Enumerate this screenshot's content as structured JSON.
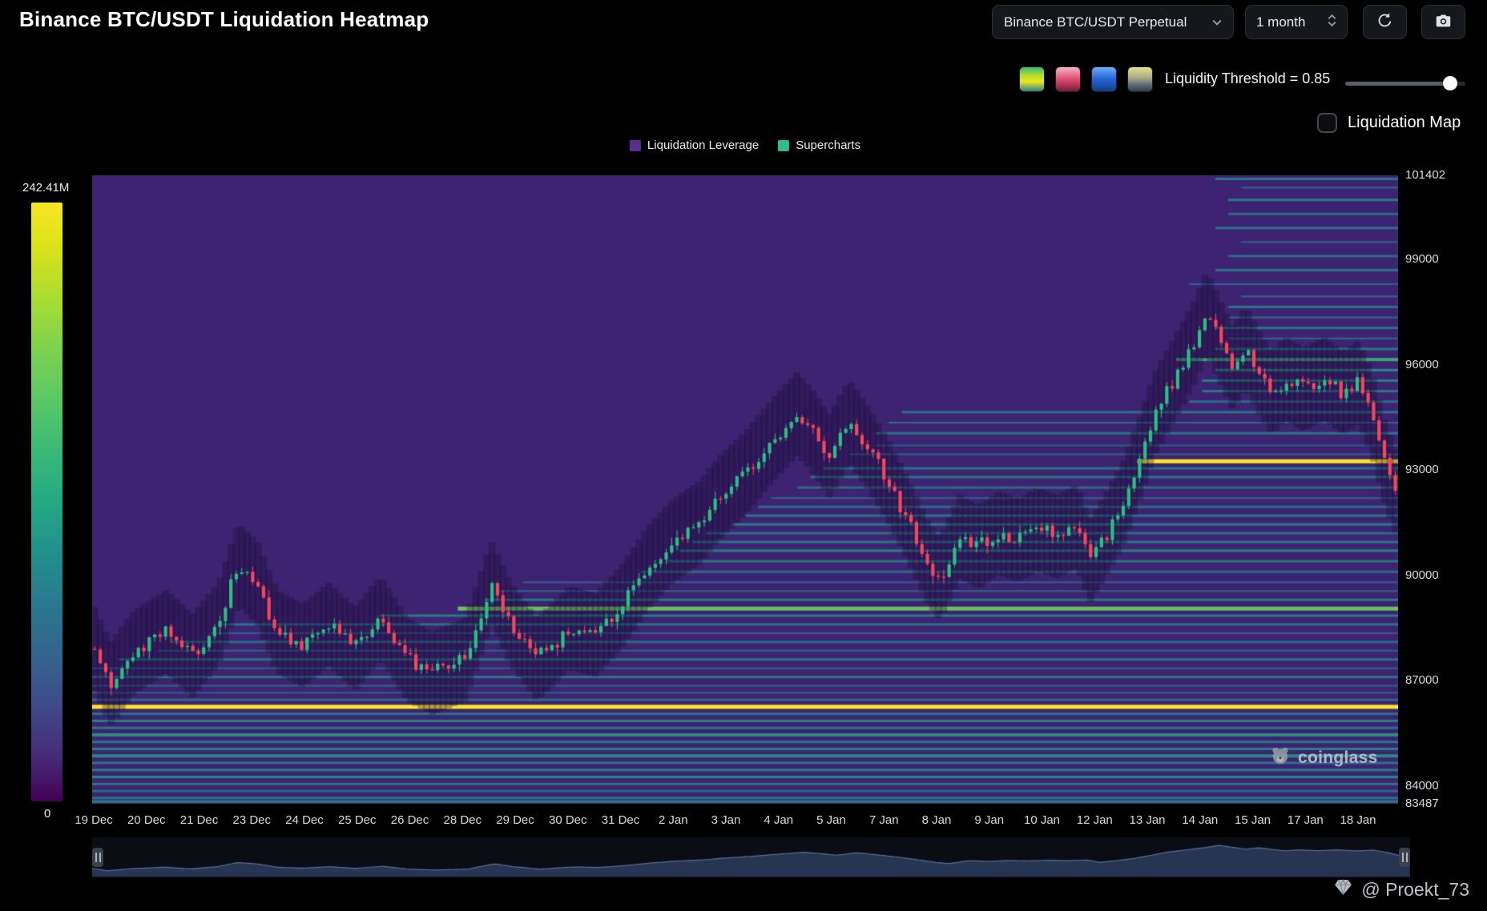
{
  "header": {
    "title": "Binance BTC/USDT Liquidation Heatmap"
  },
  "toolbar": {
    "pair": "Binance BTC/USDT Perpetual",
    "timeframe": "1 month",
    "icons": [
      "refresh-icon",
      "camera-icon"
    ]
  },
  "colormap_options": [
    "viridis",
    "reds",
    "blues",
    "cividis"
  ],
  "threshold": {
    "label": "Liquidity Threshold = 0.85",
    "value": 0.85,
    "slider_fill_percent": 87
  },
  "liquidation_map": {
    "label": "Liquidation Map",
    "checked": false
  },
  "legend": {
    "items": [
      {
        "label": "Liquidation Leverage",
        "color": "#5b2d8f"
      },
      {
        "label": "Supercharts",
        "color": "#2ebd85"
      }
    ]
  },
  "watermark": {
    "text": "coinglass"
  },
  "footer": {
    "handle": "@ Proekt_73"
  },
  "chart_data": {
    "type": "heatmap",
    "title": "Binance BTC/USDT Liquidation Heatmap",
    "y_axis": {
      "min": 83487,
      "max": 101402,
      "ticks": [
        "101402",
        "99000",
        "96000",
        "93000",
        "90000",
        "87000",
        "84000",
        "83487"
      ]
    },
    "x_ticks": [
      "19 Dec",
      "20 Dec",
      "21 Dec",
      "23 Dec",
      "24 Dec",
      "25 Dec",
      "26 Dec",
      "28 Dec",
      "29 Dec",
      "30 Dec",
      "31 Dec",
      "2 Jan",
      "3 Jan",
      "4 Jan",
      "5 Jan",
      "7 Jan",
      "8 Jan",
      "9 Jan",
      "10 Jan",
      "12 Jan",
      "13 Jan",
      "14 Jan",
      "15 Jan",
      "17 Jan",
      "18 Jan"
    ],
    "colorbar": {
      "max_label": "242.41M",
      "min_label": "0",
      "scale": "viridis"
    },
    "colors": {
      "background": "#3e2372",
      "up_candle": "#2ebd85",
      "down_candle": "#f6465d"
    },
    "candles_count": 240,
    "price_path": [
      [
        0.0,
        87900
      ],
      [
        0.012,
        86900
      ],
      [
        0.03,
        87800
      ],
      [
        0.055,
        88400
      ],
      [
        0.075,
        87700
      ],
      [
        0.095,
        88600
      ],
      [
        0.11,
        90300
      ],
      [
        0.125,
        89800
      ],
      [
        0.14,
        88400
      ],
      [
        0.16,
        88000
      ],
      [
        0.18,
        88600
      ],
      [
        0.2,
        87900
      ],
      [
        0.22,
        88800
      ],
      [
        0.24,
        87600
      ],
      [
        0.26,
        87200
      ],
      [
        0.285,
        87600
      ],
      [
        0.305,
        89800
      ],
      [
        0.32,
        88600
      ],
      [
        0.34,
        87600
      ],
      [
        0.365,
        88500
      ],
      [
        0.385,
        88300
      ],
      [
        0.405,
        89100
      ],
      [
        0.425,
        90200
      ],
      [
        0.445,
        91000
      ],
      [
        0.465,
        91500
      ],
      [
        0.48,
        92200
      ],
      [
        0.5,
        92900
      ],
      [
        0.52,
        93800
      ],
      [
        0.54,
        94600
      ],
      [
        0.55,
        94200
      ],
      [
        0.565,
        93400
      ],
      [
        0.58,
        94400
      ],
      [
        0.595,
        93600
      ],
      [
        0.61,
        92700
      ],
      [
        0.625,
        91600
      ],
      [
        0.64,
        90400
      ],
      [
        0.65,
        89900
      ],
      [
        0.665,
        91100
      ],
      [
        0.68,
        90800
      ],
      [
        0.695,
        91200
      ],
      [
        0.71,
        91000
      ],
      [
        0.725,
        91300
      ],
      [
        0.74,
        91100
      ],
      [
        0.755,
        91400
      ],
      [
        0.765,
        90400
      ],
      [
        0.775,
        91000
      ],
      [
        0.79,
        92000
      ],
      [
        0.805,
        93500
      ],
      [
        0.815,
        94600
      ],
      [
        0.83,
        95600
      ],
      [
        0.845,
        96600
      ],
      [
        0.855,
        97500
      ],
      [
        0.865,
        96700
      ],
      [
        0.875,
        95900
      ],
      [
        0.885,
        96500
      ],
      [
        0.895,
        95800
      ],
      [
        0.905,
        95200
      ],
      [
        0.915,
        95600
      ],
      [
        0.93,
        95300
      ],
      [
        0.945,
        95600
      ],
      [
        0.96,
        95200
      ],
      [
        0.972,
        95500
      ],
      [
        0.982,
        94600
      ],
      [
        0.992,
        93200
      ],
      [
        1.0,
        92400
      ]
    ],
    "liquidity_bands": [
      [
        86250,
        0,
        1.0,
        5
      ],
      [
        86050,
        0,
        0.5,
        3
      ],
      [
        85850,
        0,
        0.55,
        3
      ],
      [
        85650,
        0,
        0.5,
        3
      ],
      [
        85450,
        0,
        0.62,
        4
      ],
      [
        85250,
        0,
        0.5,
        3
      ],
      [
        85050,
        0,
        0.55,
        3
      ],
      [
        84850,
        0,
        0.6,
        4
      ],
      [
        84650,
        0,
        0.5,
        3
      ],
      [
        84450,
        0,
        0.55,
        3
      ],
      [
        84250,
        0,
        0.58,
        3
      ],
      [
        84050,
        0,
        0.5,
        3
      ],
      [
        83850,
        0,
        0.45,
        3
      ],
      [
        83650,
        0,
        0.5,
        3
      ],
      [
        83550,
        0,
        0.55,
        3
      ],
      [
        86450,
        0,
        0.45,
        3
      ],
      [
        86650,
        0,
        0.4,
        2
      ],
      [
        86850,
        0,
        0.42,
        2
      ],
      [
        87100,
        0,
        0.5,
        3
      ],
      [
        87350,
        0,
        0.42,
        2
      ],
      [
        87600,
        0.02,
        0.5,
        3
      ],
      [
        87850,
        0.05,
        0.42,
        2
      ],
      [
        88100,
        0.06,
        0.45,
        3
      ],
      [
        88350,
        0.09,
        0.4,
        2
      ],
      [
        88600,
        0.1,
        0.48,
        3
      ],
      [
        88850,
        0.22,
        0.52,
        3
      ],
      [
        89050,
        0.28,
        0.85,
        5
      ],
      [
        89300,
        0.3,
        0.5,
        3
      ],
      [
        89550,
        0.31,
        0.42,
        2
      ],
      [
        89800,
        0.33,
        0.4,
        2
      ],
      [
        90100,
        0.42,
        0.45,
        3
      ],
      [
        90400,
        0.44,
        0.5,
        3
      ],
      [
        90700,
        0.45,
        0.55,
        3
      ],
      [
        90950,
        0.46,
        0.5,
        3
      ],
      [
        91200,
        0.47,
        0.45,
        3
      ],
      [
        91450,
        0.49,
        0.55,
        3
      ],
      [
        91700,
        0.5,
        0.5,
        3
      ],
      [
        91950,
        0.51,
        0.45,
        3
      ],
      [
        92200,
        0.52,
        0.42,
        2
      ],
      [
        92500,
        0.54,
        0.45,
        3
      ],
      [
        92800,
        0.55,
        0.5,
        3
      ],
      [
        93050,
        0.56,
        0.48,
        3
      ],
      [
        93250,
        0.8,
        1.0,
        5
      ],
      [
        93450,
        0.58,
        0.42,
        2
      ],
      [
        93700,
        0.6,
        0.4,
        2
      ],
      [
        94050,
        0.6,
        0.5,
        3
      ],
      [
        94350,
        0.61,
        0.45,
        2
      ],
      [
        94650,
        0.62,
        0.5,
        3
      ],
      [
        94950,
        0.84,
        0.45,
        3
      ],
      [
        95250,
        0.85,
        0.5,
        3
      ],
      [
        95550,
        0.85,
        0.55,
        3
      ],
      [
        95850,
        0.86,
        0.6,
        3
      ],
      [
        96150,
        0.83,
        0.72,
        4
      ],
      [
        96450,
        0.86,
        0.5,
        3
      ],
      [
        96750,
        0.87,
        0.45,
        2
      ],
      [
        97050,
        0.86,
        0.5,
        3
      ],
      [
        97350,
        0.87,
        0.45,
        2
      ],
      [
        97650,
        0.87,
        0.5,
        3
      ],
      [
        97950,
        0.88,
        0.45,
        2
      ],
      [
        98300,
        0.84,
        0.42,
        2
      ],
      [
        98700,
        0.86,
        0.5,
        3
      ],
      [
        99100,
        0.87,
        0.45,
        3
      ],
      [
        99500,
        0.88,
        0.4,
        2
      ],
      [
        99900,
        0.86,
        0.5,
        3
      ],
      [
        100300,
        0.87,
        0.45,
        3
      ],
      [
        100700,
        0.87,
        0.55,
        3
      ],
      [
        101050,
        0.88,
        0.45,
        2
      ],
      [
        101300,
        0.86,
        0.5,
        3
      ]
    ]
  }
}
